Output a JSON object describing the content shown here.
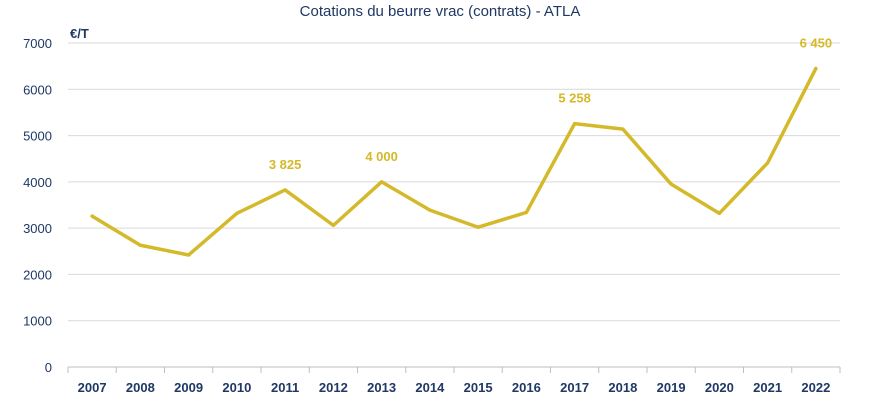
{
  "chart_data": {
    "type": "line",
    "title": "Cotations du beurre vrac (contrats) - ATLA",
    "ylabel": "€/T",
    "xlabel": "",
    "ylim": [
      0,
      7000
    ],
    "yticks": [
      "0",
      "1000",
      "2000",
      "3000",
      "4000",
      "5000",
      "6000",
      "7000"
    ],
    "grid": true,
    "categories": [
      "2007",
      "2008",
      "2009",
      "2010",
      "2011",
      "2012",
      "2013",
      "2014",
      "2015",
      "2016",
      "2017",
      "2018",
      "2019",
      "2020",
      "2021",
      "2022"
    ],
    "series": [
      {
        "values": [
          3260,
          2630,
          2420,
          3320,
          3825,
          3060,
          4000,
          3390,
          3020,
          3340,
          5258,
          5140,
          3950,
          3320,
          4410,
          6450
        ]
      }
    ],
    "data_labels": [
      {
        "category": "2011",
        "text": "3 825"
      },
      {
        "category": "2013",
        "text": "4 000"
      },
      {
        "category": "2017",
        "text": "5 258"
      },
      {
        "category": "2022",
        "text": "6 450"
      }
    ],
    "colors": {
      "line": "#d4b92a",
      "text": "#1f3864",
      "grid": "#d9d9d9",
      "axis": "#bfbfbf"
    }
  }
}
